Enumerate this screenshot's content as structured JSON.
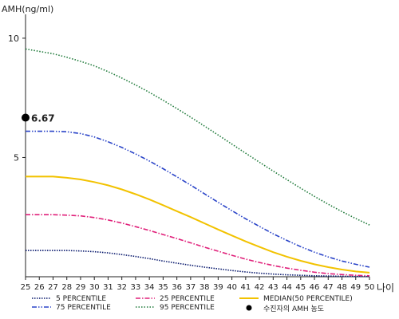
{
  "chart_data": {
    "type": "line",
    "ylabel": "AMH(ng/ml)",
    "xlabel": "나이",
    "x": [
      25,
      26,
      27,
      28,
      29,
      30,
      31,
      32,
      33,
      34,
      35,
      36,
      37,
      38,
      39,
      40,
      41,
      42,
      43,
      44,
      45,
      46,
      47,
      48,
      49,
      50
    ],
    "ylim": [
      0,
      11
    ],
    "xlim": [
      25,
      50
    ],
    "y_ticks": [
      5,
      10
    ],
    "grid": false,
    "legend_position": "bottom",
    "series": [
      {
        "name": "5 PERCENTILE",
        "color": "#0a1a6e",
        "dash": "dotted-dense",
        "values": [
          1.1,
          1.1,
          1.1,
          1.1,
          1.08,
          1.05,
          1.0,
          0.93,
          0.85,
          0.76,
          0.66,
          0.57,
          0.48,
          0.4,
          0.33,
          0.26,
          0.2,
          0.15,
          0.11,
          0.08,
          0.06,
          0.04,
          0.03,
          0.02,
          0.01,
          0.01
        ]
      },
      {
        "name": "25 PERCENTILE",
        "color": "#e0207a",
        "dash": "dashdot",
        "values": [
          2.6,
          2.6,
          2.6,
          2.58,
          2.55,
          2.48,
          2.38,
          2.25,
          2.1,
          1.94,
          1.77,
          1.6,
          1.42,
          1.24,
          1.07,
          0.9,
          0.74,
          0.6,
          0.47,
          0.36,
          0.27,
          0.19,
          0.13,
          0.09,
          0.06,
          0.04
        ]
      },
      {
        "name": "MEDIAN(50 PERCENTILE)",
        "color": "#f2c200",
        "dash": "solid",
        "values": [
          4.2,
          4.2,
          4.2,
          4.15,
          4.08,
          3.97,
          3.83,
          3.66,
          3.46,
          3.24,
          3.0,
          2.75,
          2.5,
          2.24,
          1.98,
          1.73,
          1.48,
          1.25,
          1.03,
          0.84,
          0.67,
          0.52,
          0.4,
          0.3,
          0.22,
          0.17
        ]
      },
      {
        "name": "75 PERCENTILE",
        "color": "#2a44c8",
        "dash": "dashdotdot",
        "values": [
          6.1,
          6.1,
          6.1,
          6.08,
          6.0,
          5.86,
          5.66,
          5.42,
          5.15,
          4.85,
          4.53,
          4.19,
          3.84,
          3.48,
          3.12,
          2.77,
          2.43,
          2.11,
          1.8,
          1.52,
          1.26,
          1.03,
          0.83,
          0.66,
          0.52,
          0.4
        ]
      },
      {
        "name": "95 PERCENTILE",
        "color": "#1f7a3a",
        "dash": "dotted",
        "values": [
          9.55,
          9.45,
          9.35,
          9.2,
          9.03,
          8.84,
          8.6,
          8.33,
          8.04,
          7.73,
          7.4,
          7.05,
          6.69,
          6.32,
          5.94,
          5.56,
          5.18,
          4.8,
          4.43,
          4.07,
          3.71,
          3.37,
          3.04,
          2.73,
          2.44,
          2.17
        ]
      }
    ],
    "marker": {
      "name": "수진자의 AMH 농도",
      "x": 25,
      "y": 6.67,
      "label": "6.67",
      "color": "#000000"
    }
  }
}
